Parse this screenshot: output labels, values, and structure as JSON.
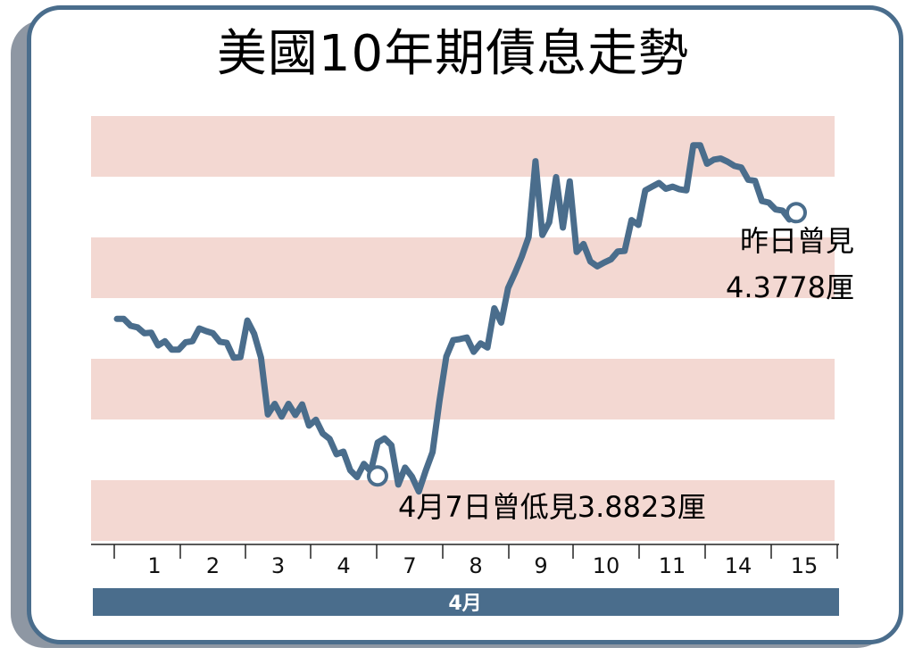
{
  "title": "美國10年期債息走勢",
  "annotations": {
    "low": "4月7日曾低見3.8823厘",
    "latest_line1": "昨日曾見",
    "latest_line2": "4.3778厘"
  },
  "colors": {
    "line": "#4a6d8c",
    "band": "#f3d8d2",
    "frame": "#4a6d8c",
    "month_bar": "#4a6d8c"
  },
  "chart_data": {
    "type": "line",
    "title": "美國10年期債息走勢",
    "x_group_label": "4月",
    "day_labels": [
      "1",
      "2",
      "3",
      "4",
      "7",
      "8",
      "9",
      "10",
      "11",
      "14",
      "15"
    ],
    "ylim": [
      3.76,
      4.56
    ],
    "grid": "alternating horizontal bands",
    "series": [
      {
        "values": [
          4.178,
          4.178,
          4.165,
          4.162,
          4.151,
          4.152,
          4.128,
          4.136,
          4.12,
          4.12,
          4.134,
          4.136,
          4.16,
          4.155,
          4.151,
          4.135,
          4.133,
          4.105,
          4.106,
          4.175,
          4.15,
          4.105,
          3.998,
          4.018,
          3.994,
          4.018,
          3.997,
          4.017,
          3.977,
          3.988,
          3.962,
          3.952,
          3.923,
          3.928,
          3.893,
          3.88,
          3.905,
          3.891,
          3.945,
          3.953,
          3.94,
          3.866,
          3.898,
          3.881,
          3.853,
          3.892,
          3.927,
          4.023,
          4.107,
          4.138,
          4.14,
          4.143,
          4.116,
          4.132,
          4.124,
          4.198,
          4.171,
          4.236,
          4.264,
          4.295,
          4.332,
          4.475,
          4.336,
          4.36,
          4.445,
          4.35,
          4.437,
          4.304,
          4.319,
          4.286,
          4.277,
          4.284,
          4.29,
          4.305,
          4.306,
          4.364,
          4.355,
          4.42,
          4.427,
          4.434,
          4.423,
          4.427,
          4.422,
          4.42,
          4.505,
          4.505,
          4.47,
          4.478,
          4.48,
          4.474,
          4.466,
          4.463,
          4.44,
          4.438,
          4.4,
          4.397,
          4.384,
          4.382,
          4.365,
          4.378
        ]
      }
    ],
    "low_point": {
      "day": "7",
      "value": 3.8823
    },
    "latest_point": {
      "day": "15",
      "value": 4.3778
    }
  }
}
